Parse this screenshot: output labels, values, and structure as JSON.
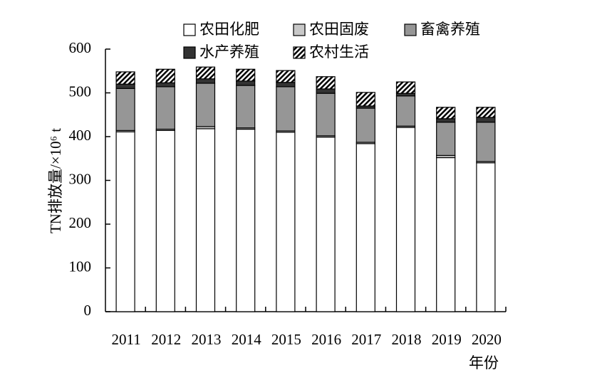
{
  "chart_data": {
    "type": "stacked-bar",
    "y_label": "TN排放量/×10⁶ t",
    "x_label": "年份",
    "categories": [
      "2011",
      "2012",
      "2013",
      "2014",
      "2015",
      "2016",
      "2017",
      "2018",
      "2019",
      "2020"
    ],
    "series": [
      {
        "name": "农田化肥",
        "color": "#ffffff",
        "values": [
          411,
          414,
          418,
          417,
          410,
          399,
          384,
          421,
          352,
          340
        ]
      },
      {
        "name": "农田固废",
        "color": "#c8c8c8",
        "values": [
          3,
          3,
          5,
          3,
          3,
          3,
          3,
          3,
          5,
          3
        ]
      },
      {
        "name": "畜禽养殖",
        "color": "#969696",
        "values": [
          96,
          97,
          99,
          97,
          101,
          97,
          78,
          69,
          76,
          90
        ]
      },
      {
        "name": "水产养殖",
        "color": "#333333",
        "values": [
          10,
          9,
          10,
          10,
          10,
          10,
          5,
          6,
          8,
          11
        ]
      },
      {
        "name": "农村生活",
        "color": "#ffffff",
        "hatch": true,
        "values": [
          28,
          31,
          27,
          27,
          27,
          28,
          31,
          26,
          26,
          23
        ]
      }
    ],
    "ylim": [
      0,
      600
    ],
    "yticks": [
      0,
      100,
      200,
      300,
      400,
      500,
      600
    ]
  }
}
